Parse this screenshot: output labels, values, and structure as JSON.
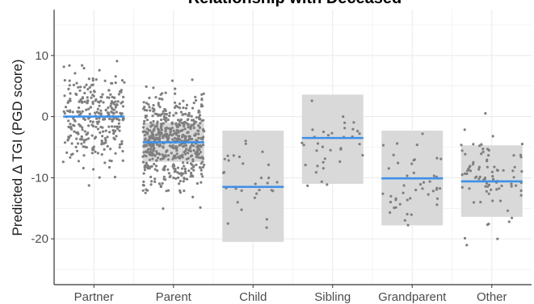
{
  "chart_data": {
    "type": "scatter",
    "title": "Relationship with Deceased",
    "xlabel": "",
    "ylabel": "Predicted Δ TGI (PGD score)",
    "categories": [
      "Partner",
      "Parent",
      "Child",
      "Sibling",
      "Grandparent",
      "Other"
    ],
    "yticks": [
      10,
      0,
      -10,
      -20
    ],
    "ylim": [
      -27.5,
      17.5
    ],
    "grid": true,
    "groups": [
      {
        "category": "Partner",
        "mean": 0.0,
        "ci": null,
        "n": 300
      },
      {
        "category": "Parent",
        "mean": -4.2,
        "ci": [
          -7.4,
          -1.0
        ],
        "n": 600
      },
      {
        "category": "Child",
        "mean": -11.5,
        "ci": [
          -20.5,
          -2.3
        ],
        "n": 30
      },
      {
        "category": "Sibling",
        "mean": -3.5,
        "ci": [
          -11.0,
          3.6
        ],
        "n": 35
      },
      {
        "category": "Grandparent",
        "mean": -10.1,
        "ci": [
          -17.8,
          -2.3
        ],
        "n": 45
      },
      {
        "category": "Other",
        "mean": -10.6,
        "ci": [
          -16.4,
          -4.7
        ],
        "n": 85
      }
    ],
    "colors": {
      "points": "#7f7f7f",
      "mean_line": "#3d8fe8",
      "ci_box": "#d9d9d9",
      "grid": "#ebebeb",
      "axis": "#333333"
    }
  }
}
